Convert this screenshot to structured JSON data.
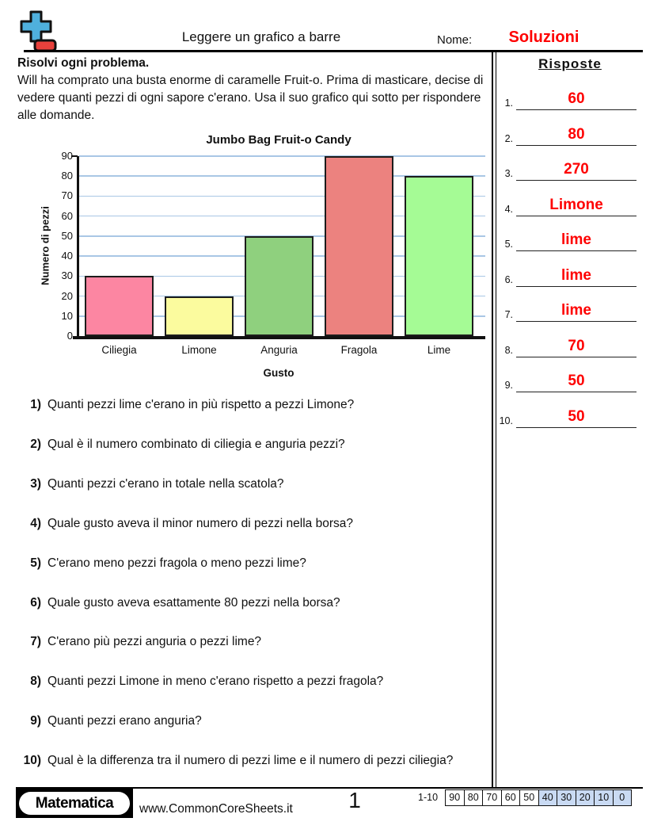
{
  "header": {
    "title": "Leggere un grafico a barre",
    "name_label": "Nome:",
    "name_value": "Soluzioni",
    "accent_color": "#FE0000"
  },
  "logo": {
    "plus_color": "#4FB0DD",
    "minus_color": "#E8413C"
  },
  "intro": {
    "heading": "Risolvi ogni problema.",
    "body": "Will ha comprato una busta enorme di caramelle Fruit-o. Prima di masticare, decise di vedere quanti pezzi di ogni sapore c'erano. Usa il suo grafico qui sotto per rispondere alle domande."
  },
  "chart_data": {
    "type": "bar",
    "title": "Jumbo Bag Fruit-o Candy",
    "xlabel": "Gusto",
    "ylabel": "Numero di pezzi",
    "categories": [
      "Ciliegia",
      "Limone",
      "Anguria",
      "Fragola",
      "Lime"
    ],
    "values": [
      30,
      20,
      50,
      90,
      80
    ],
    "bar_colors": [
      "#FC86A2",
      "#FBFB9E",
      "#8FD07E",
      "#EC827F",
      "#A5FB95"
    ],
    "ylim": [
      0,
      90
    ],
    "yticks": [
      0,
      10,
      20,
      30,
      40,
      50,
      60,
      70,
      80,
      90
    ],
    "grid": true,
    "gridline_color": "#A9C7E5",
    "legend": "none"
  },
  "questions": {
    "items": [
      {
        "num": "1)",
        "text": "Quanti pezzi lime c'erano in più rispetto a pezzi Limone?"
      },
      {
        "num": "2)",
        "text": "Qual è il numero combinato di ciliegia e anguria pezzi?"
      },
      {
        "num": "3)",
        "text": "Quanti pezzi c'erano in totale nella scatola?"
      },
      {
        "num": "4)",
        "text": "Quale gusto aveva il minor numero di pezzi nella borsa?"
      },
      {
        "num": "5)",
        "text": "C'erano meno pezzi fragola o meno pezzi lime?"
      },
      {
        "num": "6)",
        "text": "Quale gusto aveva esattamente 80 pezzi nella borsa?"
      },
      {
        "num": "7)",
        "text": "C'erano più pezzi anguria o pezzi lime?"
      },
      {
        "num": "8)",
        "text": "Quanti pezzi Limone in meno c'erano rispetto a pezzi fragola?"
      },
      {
        "num": "9)",
        "text": "Quanti pezzi erano anguria?"
      },
      {
        "num": "10)",
        "text": "Qual è la differenza tra il numero di pezzi lime e il numero di pezzi ciliegia?"
      }
    ]
  },
  "answers": {
    "heading": "Risposte",
    "color": "#FE0000",
    "items": [
      {
        "num": "1.",
        "value": "60"
      },
      {
        "num": "2.",
        "value": "80"
      },
      {
        "num": "3.",
        "value": "270"
      },
      {
        "num": "4.",
        "value": "Limone"
      },
      {
        "num": "5.",
        "value": "lime"
      },
      {
        "num": "6.",
        "value": "lime"
      },
      {
        "num": "7.",
        "value": "lime"
      },
      {
        "num": "8.",
        "value": "70"
      },
      {
        "num": "9.",
        "value": "50"
      },
      {
        "num": "10.",
        "value": "50"
      }
    ]
  },
  "footer": {
    "brand": "Matematica",
    "site": "www.CommonCoreSheets.it",
    "page": "1",
    "score_label": "1-10",
    "score_values": [
      "90",
      "80",
      "70",
      "60",
      "50",
      "40",
      "30",
      "20",
      "10",
      "0"
    ],
    "score_shaded_from_index": 5,
    "score_shade_color": "#C9DAF3"
  }
}
